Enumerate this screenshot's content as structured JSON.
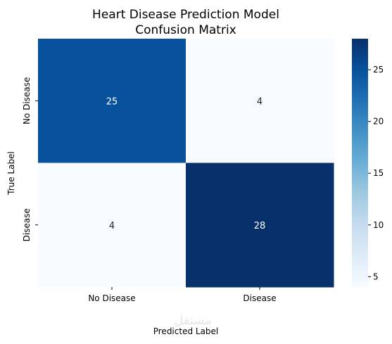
{
  "chart_data": {
    "type": "heatmap",
    "title_lines": [
      "Heart Disease Prediction Model",
      "Confusion Matrix"
    ],
    "xlabel": "Predicted Label",
    "ylabel": "True Label",
    "x_categories": [
      "No Disease",
      "Disease"
    ],
    "y_categories": [
      "No Disease",
      "Disease"
    ],
    "values": [
      [
        25,
        4
      ],
      [
        4,
        28
      ]
    ],
    "colormap": "Blues",
    "colorbar": {
      "min": 4,
      "max": 28,
      "ticks": [
        5,
        10,
        15,
        20,
        25
      ]
    },
    "colors": {
      "low": "#f7fbff",
      "high": "#08306b",
      "text_dark": "#262626",
      "text_light": "#ffffff"
    },
    "watermark": "مستقل"
  }
}
